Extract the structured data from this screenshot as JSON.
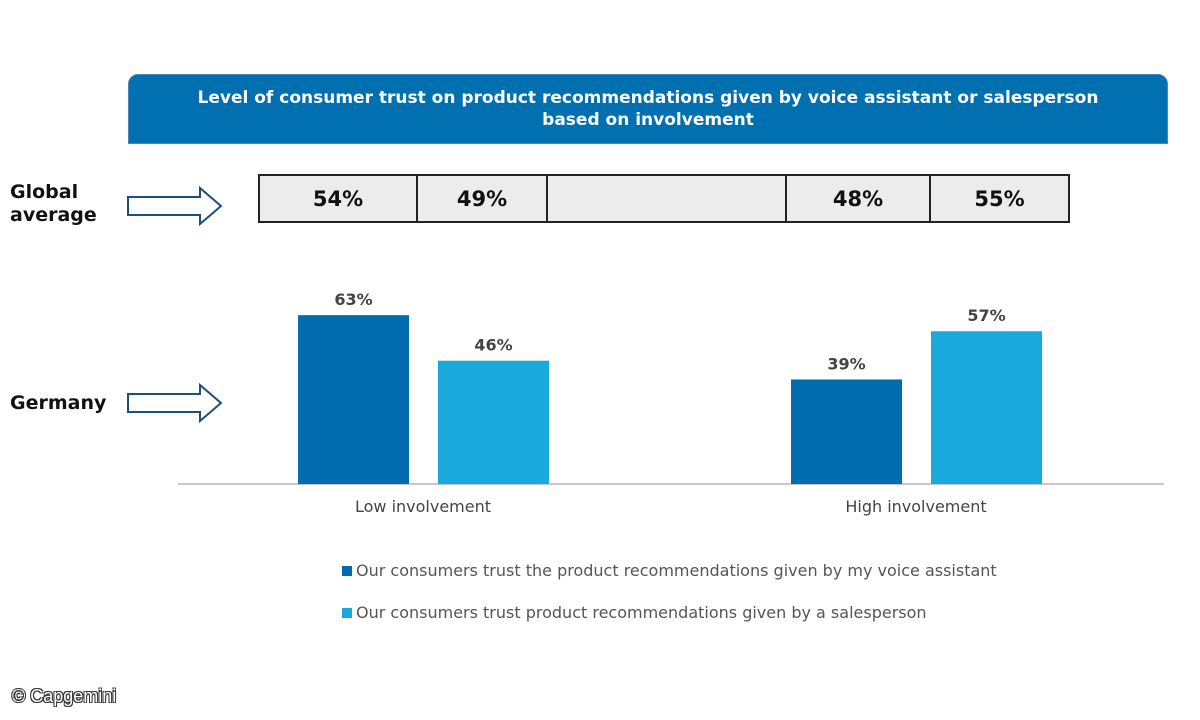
{
  "title": {
    "line1": "Level of consumer trust on product recommendations given by voice assistant or salesperson",
    "line2": "based on involvement"
  },
  "rows": {
    "global_label_line1": "Global",
    "global_label_line2": "average",
    "germany_label": "Germany"
  },
  "global_average": {
    "cells": [
      "54%",
      "49%",
      "",
      "48%",
      "55%"
    ]
  },
  "colors": {
    "title_bg": "#0070b0",
    "voice_assistant": "#006cad",
    "salesperson": "#19a9dd",
    "arrow_stroke": "#1f4e79"
  },
  "chart_data": {
    "type": "bar",
    "title": "Germany",
    "categories": [
      "Low involvement",
      "High involvement"
    ],
    "series": [
      {
        "name": "Our consumers trust the product recommendations given by my voice assistant",
        "values": [
          63,
          39
        ],
        "labels": [
          "63%",
          "39%"
        ]
      },
      {
        "name": "Our consumers trust product recommendations given by a salesperson",
        "values": [
          46,
          57
        ],
        "labels": [
          "46%",
          "57%"
        ]
      }
    ],
    "ylim": [
      0,
      100
    ],
    "unit": "%",
    "legend_position": "bottom"
  },
  "legend": {
    "item1": "Our consumers trust the product recommendations given by my voice assistant",
    "item2": "Our consumers trust product recommendations given by a salesperson"
  },
  "copyright": "© Capgemini"
}
